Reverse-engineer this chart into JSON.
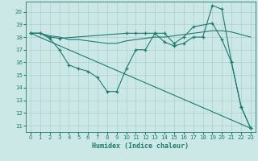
{
  "xlabel": "Humidex (Indice chaleur)",
  "xlim": [
    -0.5,
    23.5
  ],
  "ylim": [
    10.5,
    20.8
  ],
  "yticks": [
    11,
    12,
    13,
    14,
    15,
    16,
    17,
    18,
    19,
    20
  ],
  "xticks": [
    0,
    1,
    2,
    3,
    4,
    5,
    6,
    7,
    8,
    9,
    10,
    11,
    12,
    13,
    14,
    15,
    16,
    17,
    18,
    19,
    20,
    21,
    22,
    23
  ],
  "bg_color": "#cce8e6",
  "grid_color": "#aacfcd",
  "line_color": "#1e7a70",
  "line1_x": [
    0,
    1,
    2,
    3,
    4,
    5,
    6,
    7,
    8,
    9,
    10,
    11,
    12,
    13,
    14,
    15,
    16,
    17,
    18,
    19,
    20,
    21,
    22,
    23
  ],
  "line1_y": [
    18.3,
    18.3,
    17.9,
    17.0,
    15.8,
    15.5,
    15.3,
    14.8,
    13.7,
    13.7,
    15.5,
    17.0,
    17.0,
    18.3,
    17.6,
    17.3,
    17.5,
    18.0,
    18.0,
    20.5,
    20.2,
    16.0,
    12.5,
    10.8
  ],
  "line2_x": [
    0,
    1,
    2,
    3,
    4,
    5,
    6,
    7,
    8,
    9,
    10,
    11,
    12,
    13,
    14,
    15,
    16,
    17,
    18,
    19,
    20,
    21,
    22,
    23
  ],
  "line2_y": [
    18.3,
    18.3,
    18.1,
    18.0,
    17.8,
    17.8,
    17.7,
    17.6,
    17.5,
    17.5,
    17.7,
    17.8,
    17.9,
    18.0,
    18.0,
    18.1,
    18.2,
    18.3,
    18.4,
    18.5,
    18.5,
    18.4,
    18.2,
    18.0
  ],
  "line3_x": [
    0,
    23
  ],
  "line3_y": [
    18.3,
    10.8
  ],
  "line4_x": [
    0,
    1,
    2,
    3,
    10,
    11,
    12,
    13,
    14,
    15,
    16,
    17,
    19,
    20,
    21,
    22,
    23
  ],
  "line4_y": [
    18.3,
    18.3,
    18.0,
    17.9,
    18.3,
    18.3,
    18.3,
    18.3,
    18.3,
    17.5,
    18.0,
    18.8,
    19.1,
    17.8,
    16.0,
    12.5,
    10.8
  ]
}
